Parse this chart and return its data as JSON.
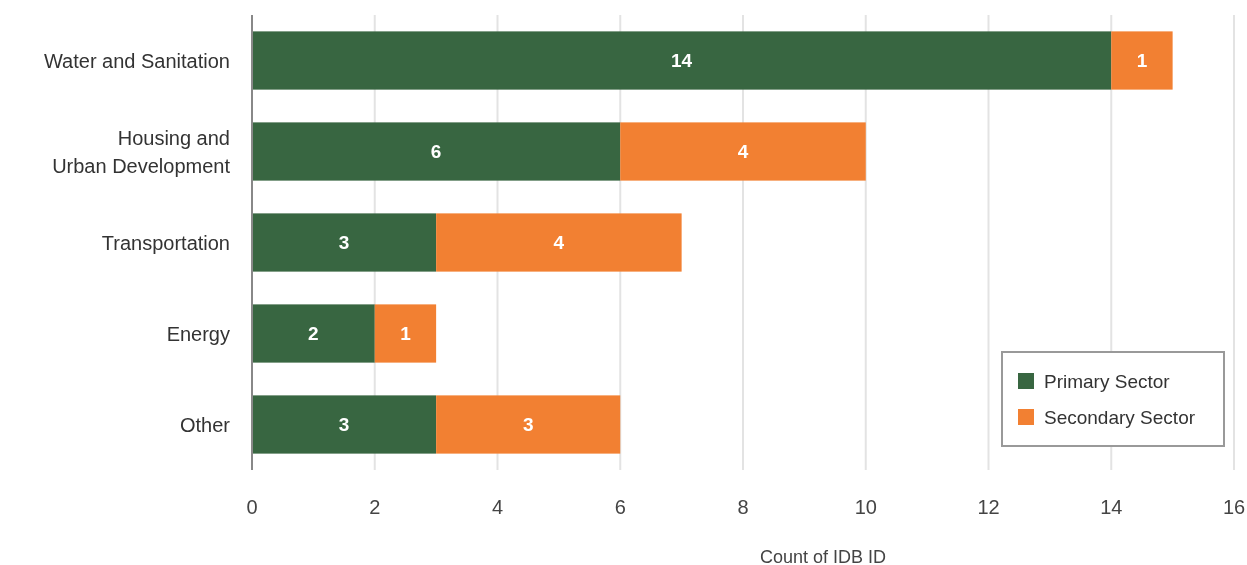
{
  "chart_data": {
    "type": "bar",
    "orientation": "horizontal",
    "stacked": true,
    "xlabel": "Count of IDB ID",
    "categories": [
      "Water and Sanitation",
      "Housing and Urban Development",
      "Transportation",
      "Energy",
      "Other"
    ],
    "series": [
      {
        "name": "Primary Sector",
        "color": "#386641",
        "values": [
          14,
          6,
          3,
          2,
          3
        ]
      },
      {
        "name": "Secondary Sector",
        "color": "#f28032",
        "values": [
          1,
          4,
          4,
          1,
          3
        ]
      }
    ],
    "xlim": [
      0,
      16
    ],
    "xticks": [
      0,
      2,
      4,
      6,
      8,
      10,
      12,
      14,
      16
    ],
    "grid": "x",
    "legend": "bottom right",
    "data_labels": true
  }
}
